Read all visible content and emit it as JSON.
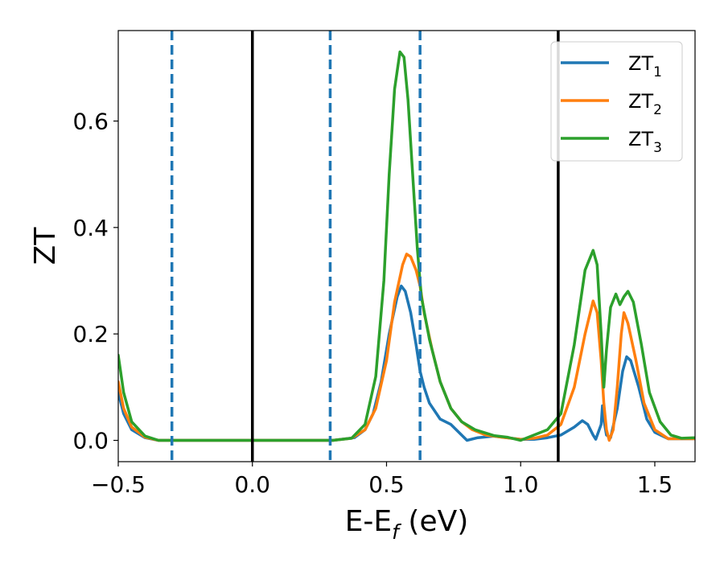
{
  "chart_data": {
    "type": "line",
    "xlabel": "E-E",
    "xlabel_subscript": "f",
    "xlabel_unit": " (eV)",
    "ylabel": "ZT",
    "xlim": [
      -0.5,
      1.65
    ],
    "ylim": [
      -0.04,
      0.77
    ],
    "x_ticks": [
      -0.5,
      0.0,
      0.5,
      1.0,
      1.5
    ],
    "x_tick_labels": [
      "−0.5",
      "0.0",
      "0.5",
      "1.0",
      "1.5"
    ],
    "y_ticks": [
      0.0,
      0.2,
      0.4,
      0.6
    ],
    "y_tick_labels": [
      "0.0",
      "0.2",
      "0.4",
      "0.6"
    ],
    "grid": false,
    "legend_position": "top-right",
    "vertical_lines": [
      {
        "x": -0.3,
        "style": "dashed",
        "color": "#1f77b4"
      },
      {
        "x": 0.0,
        "style": "solid",
        "color": "#000000"
      },
      {
        "x": 0.29,
        "style": "dashed",
        "color": "#1f77b4"
      },
      {
        "x": 0.625,
        "style": "dashed",
        "color": "#1f77b4"
      },
      {
        "x": 1.14,
        "style": "solid",
        "color": "#000000"
      }
    ],
    "series": [
      {
        "name": "ZT",
        "subscript": "1",
        "color": "#1f77b4",
        "points": [
          [
            -0.5,
            0.09
          ],
          [
            -0.48,
            0.05
          ],
          [
            -0.45,
            0.02
          ],
          [
            -0.4,
            0.005
          ],
          [
            -0.35,
            0.0
          ],
          [
            0.0,
            0.0
          ],
          [
            0.3,
            0.0
          ],
          [
            0.38,
            0.005
          ],
          [
            0.42,
            0.02
          ],
          [
            0.45,
            0.05
          ],
          [
            0.48,
            0.11
          ],
          [
            0.51,
            0.2
          ],
          [
            0.54,
            0.27
          ],
          [
            0.555,
            0.29
          ],
          [
            0.57,
            0.28
          ],
          [
            0.59,
            0.24
          ],
          [
            0.61,
            0.18
          ],
          [
            0.625,
            0.13
          ],
          [
            0.64,
            0.1
          ],
          [
            0.66,
            0.07
          ],
          [
            0.7,
            0.04
          ],
          [
            0.74,
            0.03
          ],
          [
            0.77,
            0.015
          ],
          [
            0.8,
            0.0
          ],
          [
            0.84,
            0.005
          ],
          [
            0.9,
            0.008
          ],
          [
            0.95,
            0.005
          ],
          [
            1.0,
            0.002
          ],
          [
            1.05,
            0.002
          ],
          [
            1.1,
            0.005
          ],
          [
            1.15,
            0.01
          ],
          [
            1.2,
            0.025
          ],
          [
            1.23,
            0.037
          ],
          [
            1.25,
            0.03
          ],
          [
            1.27,
            0.01
          ],
          [
            1.28,
            0.002
          ],
          [
            1.3,
            0.03
          ],
          [
            1.305,
            0.065
          ],
          [
            1.31,
            0.04
          ],
          [
            1.32,
            0.01
          ],
          [
            1.335,
            0.005
          ],
          [
            1.36,
            0.06
          ],
          [
            1.38,
            0.13
          ],
          [
            1.395,
            0.157
          ],
          [
            1.41,
            0.15
          ],
          [
            1.44,
            0.1
          ],
          [
            1.47,
            0.04
          ],
          [
            1.5,
            0.015
          ],
          [
            1.55,
            0.003
          ],
          [
            1.6,
            0.003
          ],
          [
            1.65,
            0.003
          ]
        ]
      },
      {
        "name": "ZT",
        "subscript": "2",
        "color": "#ff7f0e",
        "points": [
          [
            -0.5,
            0.11
          ],
          [
            -0.48,
            0.06
          ],
          [
            -0.45,
            0.025
          ],
          [
            -0.4,
            0.006
          ],
          [
            -0.35,
            0.0
          ],
          [
            0.0,
            0.0
          ],
          [
            0.3,
            0.0
          ],
          [
            0.37,
            0.004
          ],
          [
            0.42,
            0.02
          ],
          [
            0.46,
            0.06
          ],
          [
            0.5,
            0.15
          ],
          [
            0.53,
            0.26
          ],
          [
            0.56,
            0.33
          ],
          [
            0.575,
            0.35
          ],
          [
            0.59,
            0.345
          ],
          [
            0.61,
            0.32
          ],
          [
            0.625,
            0.29
          ],
          [
            0.64,
            0.24
          ],
          [
            0.67,
            0.17
          ],
          [
            0.7,
            0.11
          ],
          [
            0.74,
            0.06
          ],
          [
            0.78,
            0.035
          ],
          [
            0.82,
            0.02
          ],
          [
            0.87,
            0.01
          ],
          [
            0.93,
            0.006
          ],
          [
            1.0,
            0.002
          ],
          [
            1.05,
            0.004
          ],
          [
            1.1,
            0.01
          ],
          [
            1.15,
            0.03
          ],
          [
            1.2,
            0.1
          ],
          [
            1.24,
            0.2
          ],
          [
            1.27,
            0.262
          ],
          [
            1.285,
            0.24
          ],
          [
            1.3,
            0.15
          ],
          [
            1.31,
            0.07
          ],
          [
            1.32,
            0.02
          ],
          [
            1.33,
            0.0
          ],
          [
            1.345,
            0.02
          ],
          [
            1.36,
            0.1
          ],
          [
            1.375,
            0.2
          ],
          [
            1.385,
            0.24
          ],
          [
            1.4,
            0.22
          ],
          [
            1.43,
            0.15
          ],
          [
            1.46,
            0.07
          ],
          [
            1.5,
            0.02
          ],
          [
            1.55,
            0.003
          ],
          [
            1.6,
            0.003
          ],
          [
            1.65,
            0.003
          ]
        ]
      },
      {
        "name": "ZT",
        "subscript": "3",
        "color": "#2ca02c",
        "points": [
          [
            -0.5,
            0.16
          ],
          [
            -0.48,
            0.09
          ],
          [
            -0.45,
            0.035
          ],
          [
            -0.4,
            0.008
          ],
          [
            -0.35,
            0.0
          ],
          [
            0.0,
            0.0
          ],
          [
            0.3,
            0.0
          ],
          [
            0.37,
            0.004
          ],
          [
            0.42,
            0.03
          ],
          [
            0.46,
            0.12
          ],
          [
            0.49,
            0.3
          ],
          [
            0.51,
            0.5
          ],
          [
            0.53,
            0.66
          ],
          [
            0.55,
            0.73
          ],
          [
            0.565,
            0.72
          ],
          [
            0.58,
            0.64
          ],
          [
            0.6,
            0.48
          ],
          [
            0.615,
            0.36
          ],
          [
            0.63,
            0.27
          ],
          [
            0.66,
            0.19
          ],
          [
            0.7,
            0.11
          ],
          [
            0.74,
            0.06
          ],
          [
            0.78,
            0.035
          ],
          [
            0.83,
            0.02
          ],
          [
            0.9,
            0.009
          ],
          [
            0.95,
            0.006
          ],
          [
            1.0,
            0.0
          ],
          [
            1.05,
            0.01
          ],
          [
            1.1,
            0.02
          ],
          [
            1.15,
            0.05
          ],
          [
            1.2,
            0.18
          ],
          [
            1.24,
            0.32
          ],
          [
            1.27,
            0.357
          ],
          [
            1.285,
            0.33
          ],
          [
            1.3,
            0.2
          ],
          [
            1.31,
            0.1
          ],
          [
            1.32,
            0.17
          ],
          [
            1.335,
            0.25
          ],
          [
            1.355,
            0.275
          ],
          [
            1.37,
            0.255
          ],
          [
            1.385,
            0.27
          ],
          [
            1.4,
            0.28
          ],
          [
            1.42,
            0.26
          ],
          [
            1.45,
            0.18
          ],
          [
            1.48,
            0.09
          ],
          [
            1.52,
            0.035
          ],
          [
            1.56,
            0.01
          ],
          [
            1.6,
            0.004
          ],
          [
            1.65,
            0.005
          ]
        ]
      }
    ]
  }
}
